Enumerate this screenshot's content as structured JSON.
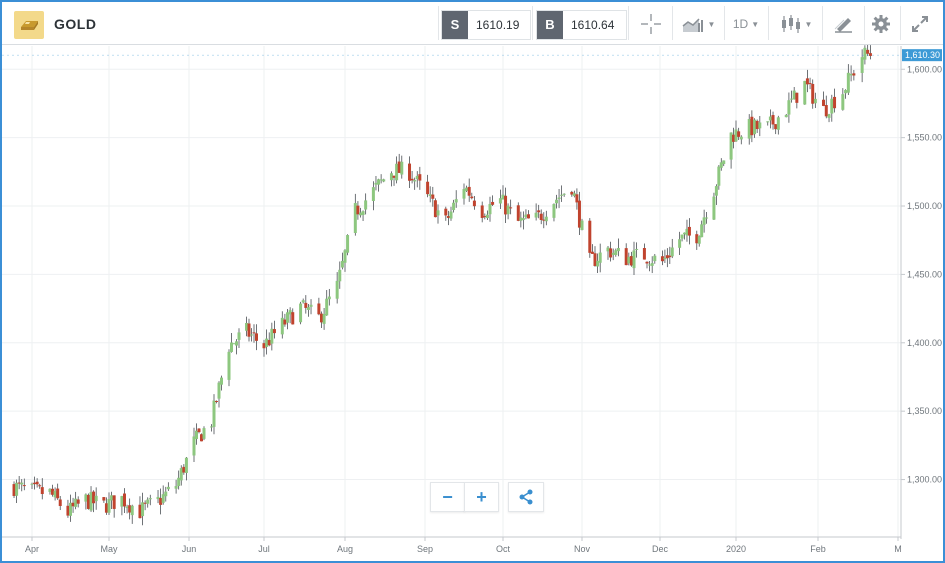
{
  "header": {
    "symbol": "GOLD",
    "sell_label": "S",
    "sell_price": "1610.19",
    "buy_label": "B",
    "buy_price": "1610.64",
    "timeframe": "1D"
  },
  "colors": {
    "up": "#8dc77f",
    "down": "#c0432e",
    "accent": "#3b8fd6",
    "last_price_bg": "#3d9ad6"
  },
  "icons": [
    "crosshair-icon",
    "chart-type-icon",
    "candlestick-icon",
    "draw-icon",
    "gear-icon",
    "fullscreen-icon",
    "zoom-out-icon",
    "zoom-in-icon",
    "share-icon"
  ],
  "chart_data": {
    "type": "candlestick",
    "symbol": "GOLD",
    "y_ticks": [
      "1,300.00",
      "1,350.00",
      "1,400.00",
      "1,450.00",
      "1,500.00",
      "1,550.00",
      "1,600.00"
    ],
    "y_tick_values": [
      1300,
      1350,
      1400,
      1450,
      1500,
      1550,
      1600
    ],
    "ylim": [
      1258,
      1617
    ],
    "x_ticks": [
      "Apr",
      "May",
      "Jun",
      "Jul",
      "Aug",
      "Sep",
      "Oct",
      "Nov",
      "Dec",
      "2020",
      "Feb",
      "M"
    ],
    "x_tick_dates": [
      "2019-04-01",
      "2019-05-01",
      "2019-06-01",
      "2019-07-01",
      "2019-08-01",
      "2019-09-01",
      "2019-10-01",
      "2019-11-01",
      "2019-12-01",
      "2020-01-01",
      "2020-02-01",
      "2020-03-01"
    ],
    "last_price": "1,610.30",
    "last_price_value": 1610.3,
    "grid": true,
    "weekly_closes": [
      [
        "2019-03-25",
        1295
      ],
      [
        "2019-04-01",
        1291
      ],
      [
        "2019-04-08",
        1290
      ],
      [
        "2019-04-15",
        1276
      ],
      [
        "2019-04-22",
        1285
      ],
      [
        "2019-04-29",
        1281
      ],
      [
        "2019-05-06",
        1286
      ],
      [
        "2019-05-13",
        1277
      ],
      [
        "2019-05-20",
        1284
      ],
      [
        "2019-05-27",
        1296
      ],
      [
        "2019-06-03",
        1327
      ],
      [
        "2019-06-10",
        1343
      ],
      [
        "2019-06-17",
        1398
      ],
      [
        "2019-06-24",
        1408
      ],
      [
        "2019-07-01",
        1398
      ],
      [
        "2019-07-08",
        1413
      ],
      [
        "2019-07-15",
        1426
      ],
      [
        "2019-07-22",
        1418
      ],
      [
        "2019-07-29",
        1441
      ],
      [
        "2019-08-05",
        1496
      ],
      [
        "2019-08-12",
        1511
      ],
      [
        "2019-08-19",
        1526
      ],
      [
        "2019-08-26",
        1525
      ],
      [
        "2019-09-02",
        1506
      ],
      [
        "2019-09-09",
        1488
      ],
      [
        "2019-09-16",
        1515
      ],
      [
        "2019-09-23",
        1497
      ],
      [
        "2019-09-30",
        1504
      ],
      [
        "2019-10-07",
        1488
      ],
      [
        "2019-10-14",
        1490
      ],
      [
        "2019-10-21",
        1504
      ],
      [
        "2019-10-28",
        1515
      ],
      [
        "2019-11-04",
        1459
      ],
      [
        "2019-11-11",
        1468
      ],
      [
        "2019-11-18",
        1462
      ],
      [
        "2019-11-25",
        1464
      ],
      [
        "2019-12-02",
        1459
      ],
      [
        "2019-12-09",
        1476
      ],
      [
        "2019-12-16",
        1479
      ],
      [
        "2019-12-23",
        1512
      ],
      [
        "2019-12-30",
        1552
      ],
      [
        "2020-01-06",
        1557
      ],
      [
        "2020-01-13",
        1557
      ],
      [
        "2020-01-20",
        1571
      ],
      [
        "2020-01-27",
        1589
      ],
      [
        "2020-02-03",
        1570
      ],
      [
        "2020-02-10",
        1584
      ],
      [
        "2020-02-17",
        1610
      ]
    ]
  },
  "zoom_controls": {
    "zoom_out": "−",
    "zoom_in": "+"
  }
}
